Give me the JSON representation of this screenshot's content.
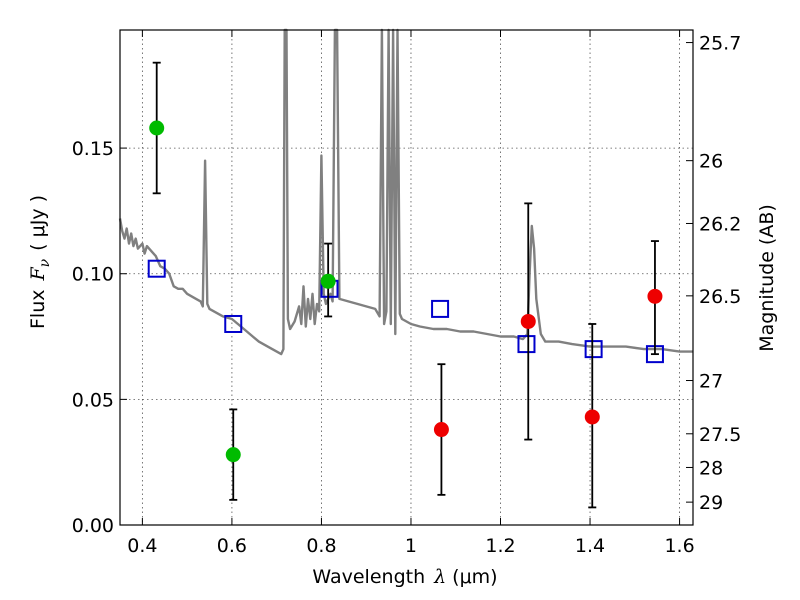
{
  "chart_data": {
    "type": "scatter",
    "xlabel": "Wavelength",
    "xlabel_symbol": "λ",
    "xlabel_unit": "(μm)",
    "ylabel": "Flux",
    "ylabel_symbol": "F",
    "ylabel_subscript": "ν",
    "ylabel_unit": "( μJy )",
    "y2label": "Magnitude (AB)",
    "xlim": [
      0.35,
      1.63
    ],
    "ylim": [
      0.0,
      0.197
    ],
    "grid": true,
    "x_ticks": [
      0.4,
      0.6,
      0.8,
      1.0,
      1.2,
      1.4,
      1.6
    ],
    "x_tick_labels": [
      "0.4",
      "0.6",
      "0.8",
      "1",
      "1.2",
      "1.4",
      "1.6"
    ],
    "y_ticks": [
      0.0,
      0.05,
      0.1,
      0.15
    ],
    "y_tick_labels": [
      "0.00",
      "0.05",
      "0.10",
      "0.15"
    ],
    "y2_ticks": [
      {
        "label": "25.7",
        "flux": 0.192
      },
      {
        "label": "26",
        "flux": 0.145
      },
      {
        "label": "26.2",
        "flux": 0.12
      },
      {
        "label": "26.5",
        "flux": 0.0912
      },
      {
        "label": "27",
        "flux": 0.0575
      },
      {
        "label": "27.5",
        "flux": 0.0363
      },
      {
        "label": "28",
        "flux": 0.0229
      },
      {
        "label": "29",
        "flux": 0.0091
      }
    ],
    "series": [
      {
        "kind": "line",
        "color": "#808080",
        "points": [
          [
            0.35,
            0.122
          ],
          [
            0.355,
            0.117
          ],
          [
            0.36,
            0.114
          ],
          [
            0.365,
            0.118
          ],
          [
            0.37,
            0.112
          ],
          [
            0.375,
            0.116
          ],
          [
            0.38,
            0.111
          ],
          [
            0.385,
            0.114
          ],
          [
            0.39,
            0.11
          ],
          [
            0.4,
            0.112
          ],
          [
            0.405,
            0.108
          ],
          [
            0.41,
            0.111
          ],
          [
            0.42,
            0.109
          ],
          [
            0.43,
            0.107
          ],
          [
            0.44,
            0.103
          ],
          [
            0.45,
            0.102
          ],
          [
            0.46,
            0.1
          ],
          [
            0.47,
            0.095
          ],
          [
            0.48,
            0.094
          ],
          [
            0.49,
            0.094
          ],
          [
            0.5,
            0.092
          ],
          [
            0.52,
            0.09
          ],
          [
            0.53,
            0.089
          ],
          [
            0.535,
            0.087
          ],
          [
            0.54,
            0.145
          ],
          [
            0.545,
            0.088
          ],
          [
            0.55,
            0.086
          ],
          [
            0.58,
            0.083
          ],
          [
            0.6,
            0.082
          ],
          [
            0.62,
            0.079
          ],
          [
            0.64,
            0.076
          ],
          [
            0.66,
            0.073
          ],
          [
            0.68,
            0.071
          ],
          [
            0.7,
            0.069
          ],
          [
            0.71,
            0.068
          ],
          [
            0.715,
            0.07
          ],
          [
            0.718,
            0.197
          ],
          [
            0.722,
            0.197
          ],
          [
            0.725,
            0.082
          ],
          [
            0.73,
            0.078
          ],
          [
            0.74,
            0.081
          ],
          [
            0.75,
            0.087
          ],
          [
            0.755,
            0.08
          ],
          [
            0.76,
            0.095
          ],
          [
            0.765,
            0.079
          ],
          [
            0.77,
            0.09
          ],
          [
            0.775,
            0.082
          ],
          [
            0.78,
            0.092
          ],
          [
            0.785,
            0.08
          ],
          [
            0.79,
            0.088
          ],
          [
            0.795,
            0.085
          ],
          [
            0.8,
            0.147
          ],
          [
            0.805,
            0.092
          ],
          [
            0.81,
            0.088
          ],
          [
            0.815,
            0.09
          ],
          [
            0.82,
            0.092
          ],
          [
            0.825,
            0.089
          ],
          [
            0.83,
            0.197
          ],
          [
            0.835,
            0.197
          ],
          [
            0.84,
            0.09
          ],
          [
            0.86,
            0.089
          ],
          [
            0.88,
            0.088
          ],
          [
            0.9,
            0.087
          ],
          [
            0.92,
            0.086
          ],
          [
            0.93,
            0.083
          ],
          [
            0.935,
            0.197
          ],
          [
            0.94,
            0.08
          ],
          [
            0.945,
            0.085
          ],
          [
            0.95,
            0.197
          ],
          [
            0.955,
            0.08
          ],
          [
            0.96,
            0.197
          ],
          [
            0.965,
            0.076
          ],
          [
            0.97,
            0.197
          ],
          [
            0.975,
            0.084
          ],
          [
            0.98,
            0.082
          ],
          [
            1.0,
            0.08
          ],
          [
            1.02,
            0.079
          ],
          [
            1.05,
            0.078
          ],
          [
            1.08,
            0.078
          ],
          [
            1.11,
            0.077
          ],
          [
            1.14,
            0.077
          ],
          [
            1.17,
            0.076
          ],
          [
            1.2,
            0.075
          ],
          [
            1.23,
            0.075
          ],
          [
            1.25,
            0.074
          ],
          [
            1.26,
            0.076
          ],
          [
            1.265,
            0.1
          ],
          [
            1.27,
            0.119
          ],
          [
            1.275,
            0.11
          ],
          [
            1.28,
            0.09
          ],
          [
            1.29,
            0.076
          ],
          [
            1.3,
            0.073
          ],
          [
            1.33,
            0.073
          ],
          [
            1.36,
            0.072
          ],
          [
            1.4,
            0.071
          ],
          [
            1.44,
            0.071
          ],
          [
            1.48,
            0.071
          ],
          [
            1.52,
            0.07
          ],
          [
            1.56,
            0.07
          ],
          [
            1.6,
            0.069
          ],
          [
            1.63,
            0.069
          ]
        ]
      },
      {
        "kind": "squares",
        "color": "#0000cc",
        "points": [
          [
            0.432,
            0.102
          ],
          [
            0.603,
            0.08
          ],
          [
            0.818,
            0.094
          ],
          [
            1.065,
            0.086
          ],
          [
            1.258,
            0.072
          ],
          [
            1.408,
            0.07
          ],
          [
            1.545,
            0.068
          ]
        ]
      },
      {
        "kind": "points_with_errors",
        "points": [
          {
            "x": 0.432,
            "y": 0.158,
            "lo": 0.132,
            "hi": 0.184,
            "color": "#00bb00"
          },
          {
            "x": 0.603,
            "y": 0.028,
            "lo": 0.01,
            "hi": 0.046,
            "color": "#00bb00"
          },
          {
            "x": 0.815,
            "y": 0.097,
            "lo": 0.083,
            "hi": 0.112,
            "color": "#00bb00"
          },
          {
            "x": 1.068,
            "y": 0.038,
            "lo": 0.012,
            "hi": 0.064,
            "color": "#ee0000"
          },
          {
            "x": 1.262,
            "y": 0.081,
            "lo": 0.034,
            "hi": 0.128,
            "color": "#ee0000"
          },
          {
            "x": 1.405,
            "y": 0.043,
            "lo": 0.007,
            "hi": 0.08,
            "color": "#ee0000"
          },
          {
            "x": 1.545,
            "y": 0.091,
            "lo": 0.068,
            "hi": 0.113,
            "color": "#ee0000"
          }
        ]
      }
    ]
  }
}
